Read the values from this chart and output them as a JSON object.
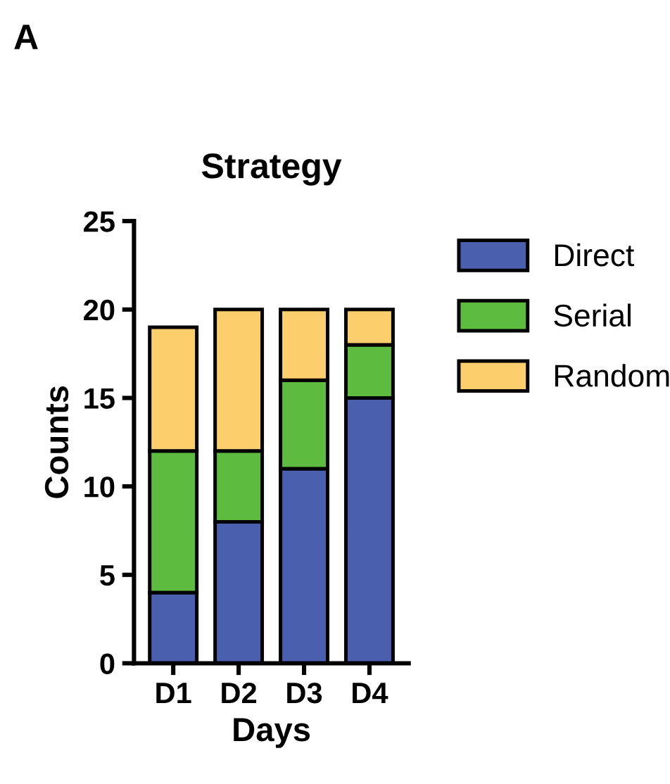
{
  "chart_data": {
    "type": "bar",
    "title": "Strategy",
    "xlabel": "Days",
    "ylabel": "Counts",
    "categories": [
      "D1",
      "D2",
      "D3",
      "D4"
    ],
    "series": [
      {
        "name": "Direct",
        "color": "#4a5fae",
        "values": [
          4,
          8,
          11,
          15
        ]
      },
      {
        "name": "Serial",
        "color": "#5dbb3f",
        "values": [
          8,
          4,
          5,
          3
        ]
      },
      {
        "name": "Random",
        "color": "#fdcf6c",
        "values": [
          7,
          8,
          4,
          2
        ]
      }
    ],
    "stacked": true,
    "ylim": [
      0,
      25
    ],
    "yticks": [
      0,
      5,
      10,
      15,
      20,
      25
    ],
    "grid": false,
    "legend": "right",
    "annotations": [
      "A"
    ]
  }
}
